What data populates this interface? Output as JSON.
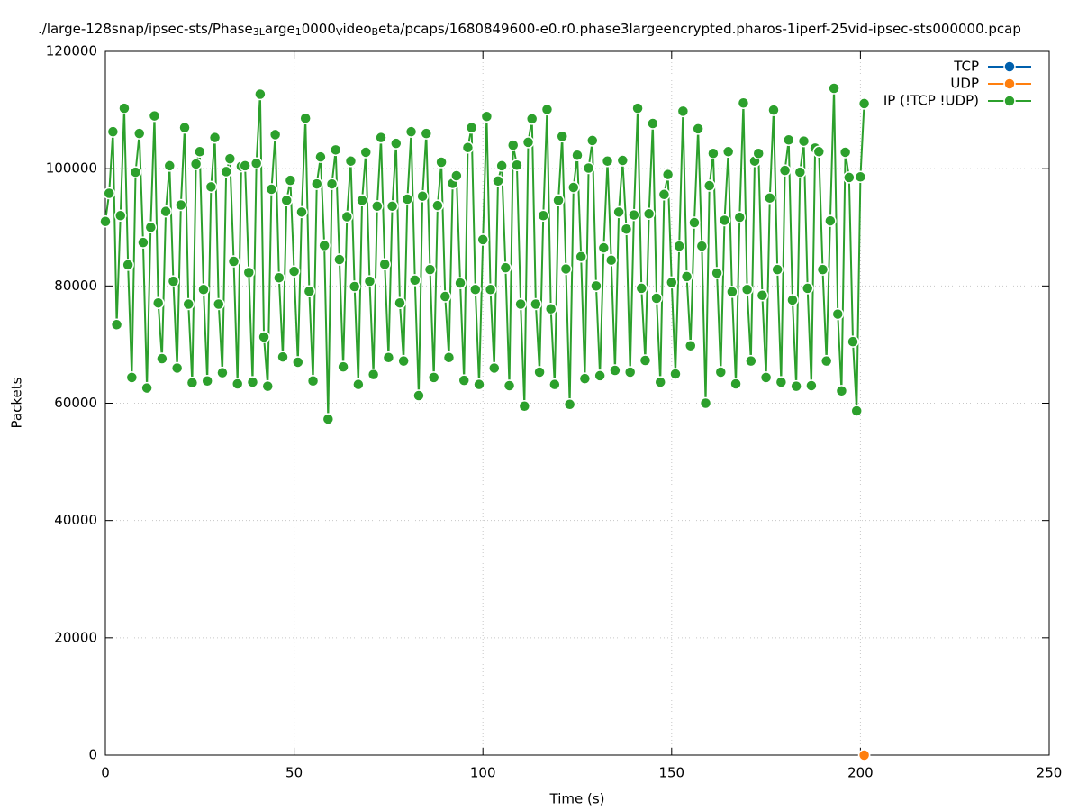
{
  "chart_data": {
    "type": "line",
    "title": [
      "./large-128snap/ipsec-sts/Phase",
      {
        "sub": "3L"
      },
      "arge",
      {
        "sub": "1"
      },
      "0000",
      {
        "sub": "V"
      },
      "ideo",
      {
        "sub": "B"
      },
      "eta/pcaps/1680849600-e0.r0.phase3largeencrypted.pharos-1iperf-25vid-ipsec-sts000000.pcap"
    ],
    "x_label": "Time (s)",
    "y_label": "Packets",
    "xlim": [
      0,
      250
    ],
    "xticks": [
      0,
      50,
      100,
      150,
      200,
      250
    ],
    "ylim": [
      0,
      120000
    ],
    "yticks": [
      0,
      20000,
      40000,
      60000,
      80000,
      100000,
      120000
    ],
    "grid": true,
    "legend": "top-right",
    "series": [
      {
        "name": "TCP",
        "color": "#0060ad",
        "x": [
          201
        ],
        "values": [
          0
        ]
      },
      {
        "name": "UDP",
        "color": "#ff7f0e",
        "x": [
          201
        ],
        "values": [
          0
        ]
      },
      {
        "name": "IP (!TCP  !UDP)",
        "color": "#2ca02c",
        "x": [
          0,
          1,
          2,
          3,
          4,
          5,
          6,
          7,
          8,
          9,
          10,
          11,
          12,
          13,
          14,
          15,
          16,
          17,
          18,
          19,
          20,
          21,
          22,
          23,
          24,
          25,
          26,
          27,
          28,
          29,
          30,
          31,
          32,
          33,
          34,
          35,
          36,
          37,
          38,
          39,
          40,
          41,
          42,
          43,
          44,
          45,
          46,
          47,
          48,
          49,
          50,
          51,
          52,
          53,
          54,
          55,
          56,
          57,
          58,
          59,
          60,
          61,
          62,
          63,
          64,
          65,
          66,
          67,
          68,
          69,
          70,
          71,
          72,
          73,
          74,
          75,
          76,
          77,
          78,
          79,
          80,
          81,
          82,
          83,
          84,
          85,
          86,
          87,
          88,
          89,
          90,
          91,
          92,
          93,
          94,
          95,
          96,
          97,
          98,
          99,
          100,
          101,
          102,
          103,
          104,
          105,
          106,
          107,
          108,
          109,
          110,
          111,
          112,
          113,
          114,
          115,
          116,
          117,
          118,
          119,
          120,
          121,
          122,
          123,
          124,
          125,
          126,
          127,
          128,
          129,
          130,
          131,
          132,
          133,
          134,
          135,
          136,
          137,
          138,
          139,
          140,
          141,
          142,
          143,
          144,
          145,
          146,
          147,
          148,
          149,
          150,
          151,
          152,
          153,
          154,
          155,
          156,
          157,
          158,
          159,
          160,
          161,
          162,
          163,
          164,
          165,
          166,
          167,
          168,
          169,
          170,
          171,
          172,
          173,
          174,
          175,
          176,
          177,
          178,
          179,
          180,
          181,
          182,
          183,
          184,
          185,
          186,
          187,
          188,
          189,
          190,
          191,
          192,
          193,
          194,
          195,
          196,
          197,
          198,
          199,
          200,
          201
        ],
        "values": [
          91000,
          95800,
          106300,
          73400,
          92000,
          110300,
          83600,
          64400,
          99400,
          106000,
          87400,
          62600,
          90000,
          109000,
          77100,
          67600,
          92700,
          100500,
          80800,
          66000,
          93800,
          107000,
          76900,
          63500,
          100800,
          102900,
          79400,
          63800,
          96900,
          105300,
          76900,
          65200,
          99500,
          101700,
          84200,
          63300,
          100400,
          100500,
          82300,
          63600,
          100900,
          112700,
          71300,
          62900,
          96500,
          105800,
          81400,
          67900,
          94600,
          98000,
          82500,
          67000,
          92600,
          108600,
          79100,
          63800,
          97400,
          102000,
          86900,
          57300,
          97400,
          103200,
          84500,
          66200,
          91800,
          101300,
          79900,
          63200,
          94600,
          102800,
          80800,
          64900,
          93600,
          105300,
          83700,
          67800,
          93600,
          104300,
          77100,
          67200,
          94800,
          106300,
          81000,
          61300,
          95300,
          106000,
          82800,
          64400,
          93700,
          101100,
          78200,
          67800,
          97500,
          98800,
          80500,
          63900,
          103600,
          107000,
          79400,
          63200,
          87900,
          108900,
          79400,
          66000,
          97900,
          100500,
          83100,
          63000,
          104000,
          100600,
          76900,
          59500,
          104500,
          108500,
          76900,
          65300,
          92000,
          110100,
          76100,
          63200,
          94600,
          105500,
          82900,
          59800,
          96800,
          102300,
          85000,
          64200,
          100100,
          104800,
          80000,
          64700,
          86500,
          101300,
          84400,
          65600,
          92600,
          101400,
          89700,
          65300,
          92100,
          110300,
          79600,
          67300,
          92300,
          107700,
          77900,
          63600,
          95600,
          99000,
          80600,
          65000,
          86800,
          109800,
          81600,
          69800,
          90800,
          106800,
          86800,
          60000,
          97100,
          102600,
          82200,
          65300,
          91200,
          102900,
          79000,
          63300,
          91700,
          111200,
          79400,
          67200,
          101300,
          102600,
          78400,
          64400,
          95000,
          110000,
          82800,
          63600,
          99700,
          104900,
          77600,
          62900,
          99400,
          104700,
          79600,
          63000,
          103500,
          102900,
          82800,
          67200,
          91100,
          113700,
          75200,
          62100,
          102800,
          98500,
          70500,
          58700,
          98600,
          111100
        ]
      }
    ]
  }
}
